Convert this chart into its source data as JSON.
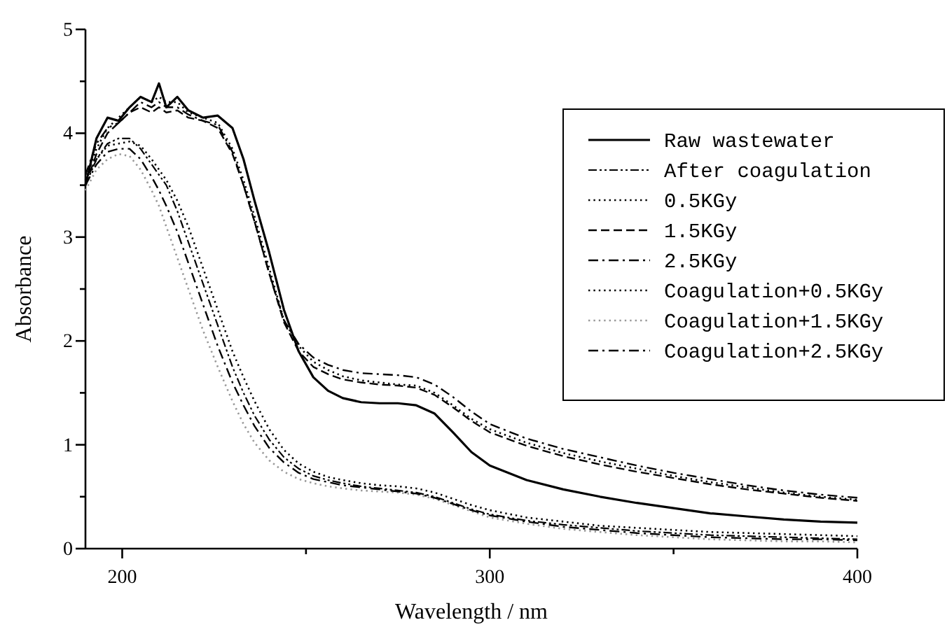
{
  "chart_data": {
    "type": "line",
    "xlabel": "Wavelength / nm",
    "ylabel": "Absorbance",
    "xlim": [
      190,
      400
    ],
    "xticks": [
      200,
      {
        "value": 250,
        "label": null
      },
      300,
      {
        "value": 350,
        "label": null
      },
      400
    ],
    "ylim": [
      0,
      5
    ],
    "yticks": [
      0,
      {
        "value": 0.5,
        "label": null
      },
      1,
      {
        "value": 1.5,
        "label": null
      },
      2,
      {
        "value": 2.5,
        "label": null
      },
      3,
      {
        "value": 3.5,
        "label": null
      },
      4,
      {
        "value": 4.5,
        "label": null
      },
      5
    ],
    "grid": false,
    "legend": "top right",
    "x": [
      190,
      193,
      196,
      199,
      202,
      205,
      208,
      210,
      212,
      215,
      218,
      222,
      226,
      230,
      233,
      236,
      240,
      244,
      248,
      252,
      256,
      260,
      265,
      270,
      275,
      280,
      285,
      290,
      295,
      300,
      310,
      320,
      330,
      340,
      350,
      360,
      370,
      380,
      390,
      400
    ],
    "series": [
      {
        "name": "Raw wastewater",
        "color": "#000000",
        "line_style": "solid",
        "values": [
          3.5,
          3.95,
          4.15,
          4.12,
          4.25,
          4.35,
          4.3,
          4.48,
          4.25,
          4.35,
          4.22,
          4.15,
          4.17,
          4.05,
          3.75,
          3.35,
          2.85,
          2.3,
          1.9,
          1.65,
          1.52,
          1.45,
          1.41,
          1.4,
          1.4,
          1.38,
          1.3,
          1.12,
          0.93,
          0.8,
          0.66,
          0.57,
          0.5,
          0.44,
          0.39,
          0.34,
          0.31,
          0.28,
          0.26,
          0.25
        ]
      },
      {
        "name": "After coagulation",
        "color": "#000000",
        "line_style": "dashdotdot",
        "values": [
          3.5,
          3.75,
          3.9,
          3.95,
          3.95,
          3.85,
          3.7,
          3.6,
          3.5,
          3.25,
          2.95,
          2.55,
          2.15,
          1.75,
          1.5,
          1.28,
          1.05,
          0.88,
          0.77,
          0.7,
          0.66,
          0.63,
          0.6,
          0.58,
          0.56,
          0.54,
          0.5,
          0.44,
          0.38,
          0.33,
          0.27,
          0.23,
          0.2,
          0.17,
          0.15,
          0.13,
          0.12,
          0.11,
          0.1,
          0.09
        ]
      },
      {
        "name": "0.5KGy",
        "color": "#000000",
        "line_style": "dotted",
        "values": [
          3.55,
          3.85,
          4.05,
          4.15,
          4.25,
          4.35,
          4.3,
          4.35,
          4.3,
          4.3,
          4.2,
          4.15,
          4.1,
          3.85,
          3.55,
          3.2,
          2.7,
          2.2,
          1.95,
          1.8,
          1.72,
          1.66,
          1.62,
          1.6,
          1.58,
          1.57,
          1.5,
          1.38,
          1.25,
          1.15,
          1.02,
          0.92,
          0.84,
          0.77,
          0.7,
          0.64,
          0.59,
          0.54,
          0.5,
          0.47
        ]
      },
      {
        "name": "1.5KGy",
        "color": "#000000",
        "line_style": "dashed",
        "values": [
          3.5,
          3.8,
          4.0,
          4.1,
          4.2,
          4.25,
          4.2,
          4.25,
          4.2,
          4.22,
          4.15,
          4.12,
          4.05,
          3.8,
          3.5,
          3.15,
          2.65,
          2.18,
          1.9,
          1.75,
          1.68,
          1.63,
          1.6,
          1.58,
          1.57,
          1.55,
          1.48,
          1.36,
          1.23,
          1.12,
          0.99,
          0.89,
          0.81,
          0.74,
          0.68,
          0.62,
          0.57,
          0.53,
          0.49,
          0.46
        ]
      },
      {
        "name": "2.5KGy",
        "color": "#000000",
        "line_style": "dashdot",
        "values": [
          3.6,
          3.9,
          4.05,
          4.1,
          4.2,
          4.3,
          4.25,
          4.3,
          4.25,
          4.25,
          4.18,
          4.12,
          4.08,
          3.82,
          3.5,
          3.15,
          2.65,
          2.2,
          1.97,
          1.84,
          1.77,
          1.72,
          1.69,
          1.68,
          1.67,
          1.65,
          1.58,
          1.46,
          1.32,
          1.2,
          1.06,
          0.96,
          0.88,
          0.8,
          0.73,
          0.67,
          0.61,
          0.56,
          0.52,
          0.49
        ]
      },
      {
        "name": "Coagulation+0.5KGy",
        "color": "#000000",
        "line_style": "dotted",
        "values": [
          3.55,
          3.75,
          3.88,
          3.9,
          3.92,
          3.88,
          3.75,
          3.65,
          3.55,
          3.35,
          3.1,
          2.7,
          2.3,
          1.9,
          1.65,
          1.42,
          1.15,
          0.95,
          0.82,
          0.74,
          0.69,
          0.66,
          0.63,
          0.61,
          0.6,
          0.58,
          0.54,
          0.48,
          0.42,
          0.37,
          0.3,
          0.26,
          0.22,
          0.2,
          0.18,
          0.16,
          0.15,
          0.14,
          0.13,
          0.12
        ]
      },
      {
        "name": "Coagulation+1.5KGy",
        "color": "#999999",
        "line_style": "dotted",
        "values": [
          3.45,
          3.65,
          3.75,
          3.8,
          3.78,
          3.65,
          3.45,
          3.3,
          3.1,
          2.8,
          2.5,
          2.1,
          1.75,
          1.42,
          1.2,
          1.02,
          0.85,
          0.74,
          0.67,
          0.63,
          0.6,
          0.58,
          0.56,
          0.55,
          0.54,
          0.52,
          0.48,
          0.42,
          0.36,
          0.3,
          0.24,
          0.19,
          0.16,
          0.13,
          0.11,
          0.09,
          0.08,
          0.07,
          0.07,
          0.06
        ]
      },
      {
        "name": "Coagulation+2.5KGy",
        "color": "#000000",
        "line_style": "dashdot",
        "values": [
          3.5,
          3.7,
          3.82,
          3.85,
          3.85,
          3.75,
          3.58,
          3.45,
          3.3,
          3.05,
          2.75,
          2.35,
          1.95,
          1.6,
          1.38,
          1.18,
          0.97,
          0.83,
          0.73,
          0.67,
          0.64,
          0.61,
          0.59,
          0.57,
          0.55,
          0.53,
          0.49,
          0.43,
          0.37,
          0.32,
          0.26,
          0.21,
          0.18,
          0.15,
          0.13,
          0.11,
          0.1,
          0.09,
          0.09,
          0.08
        ]
      }
    ]
  }
}
